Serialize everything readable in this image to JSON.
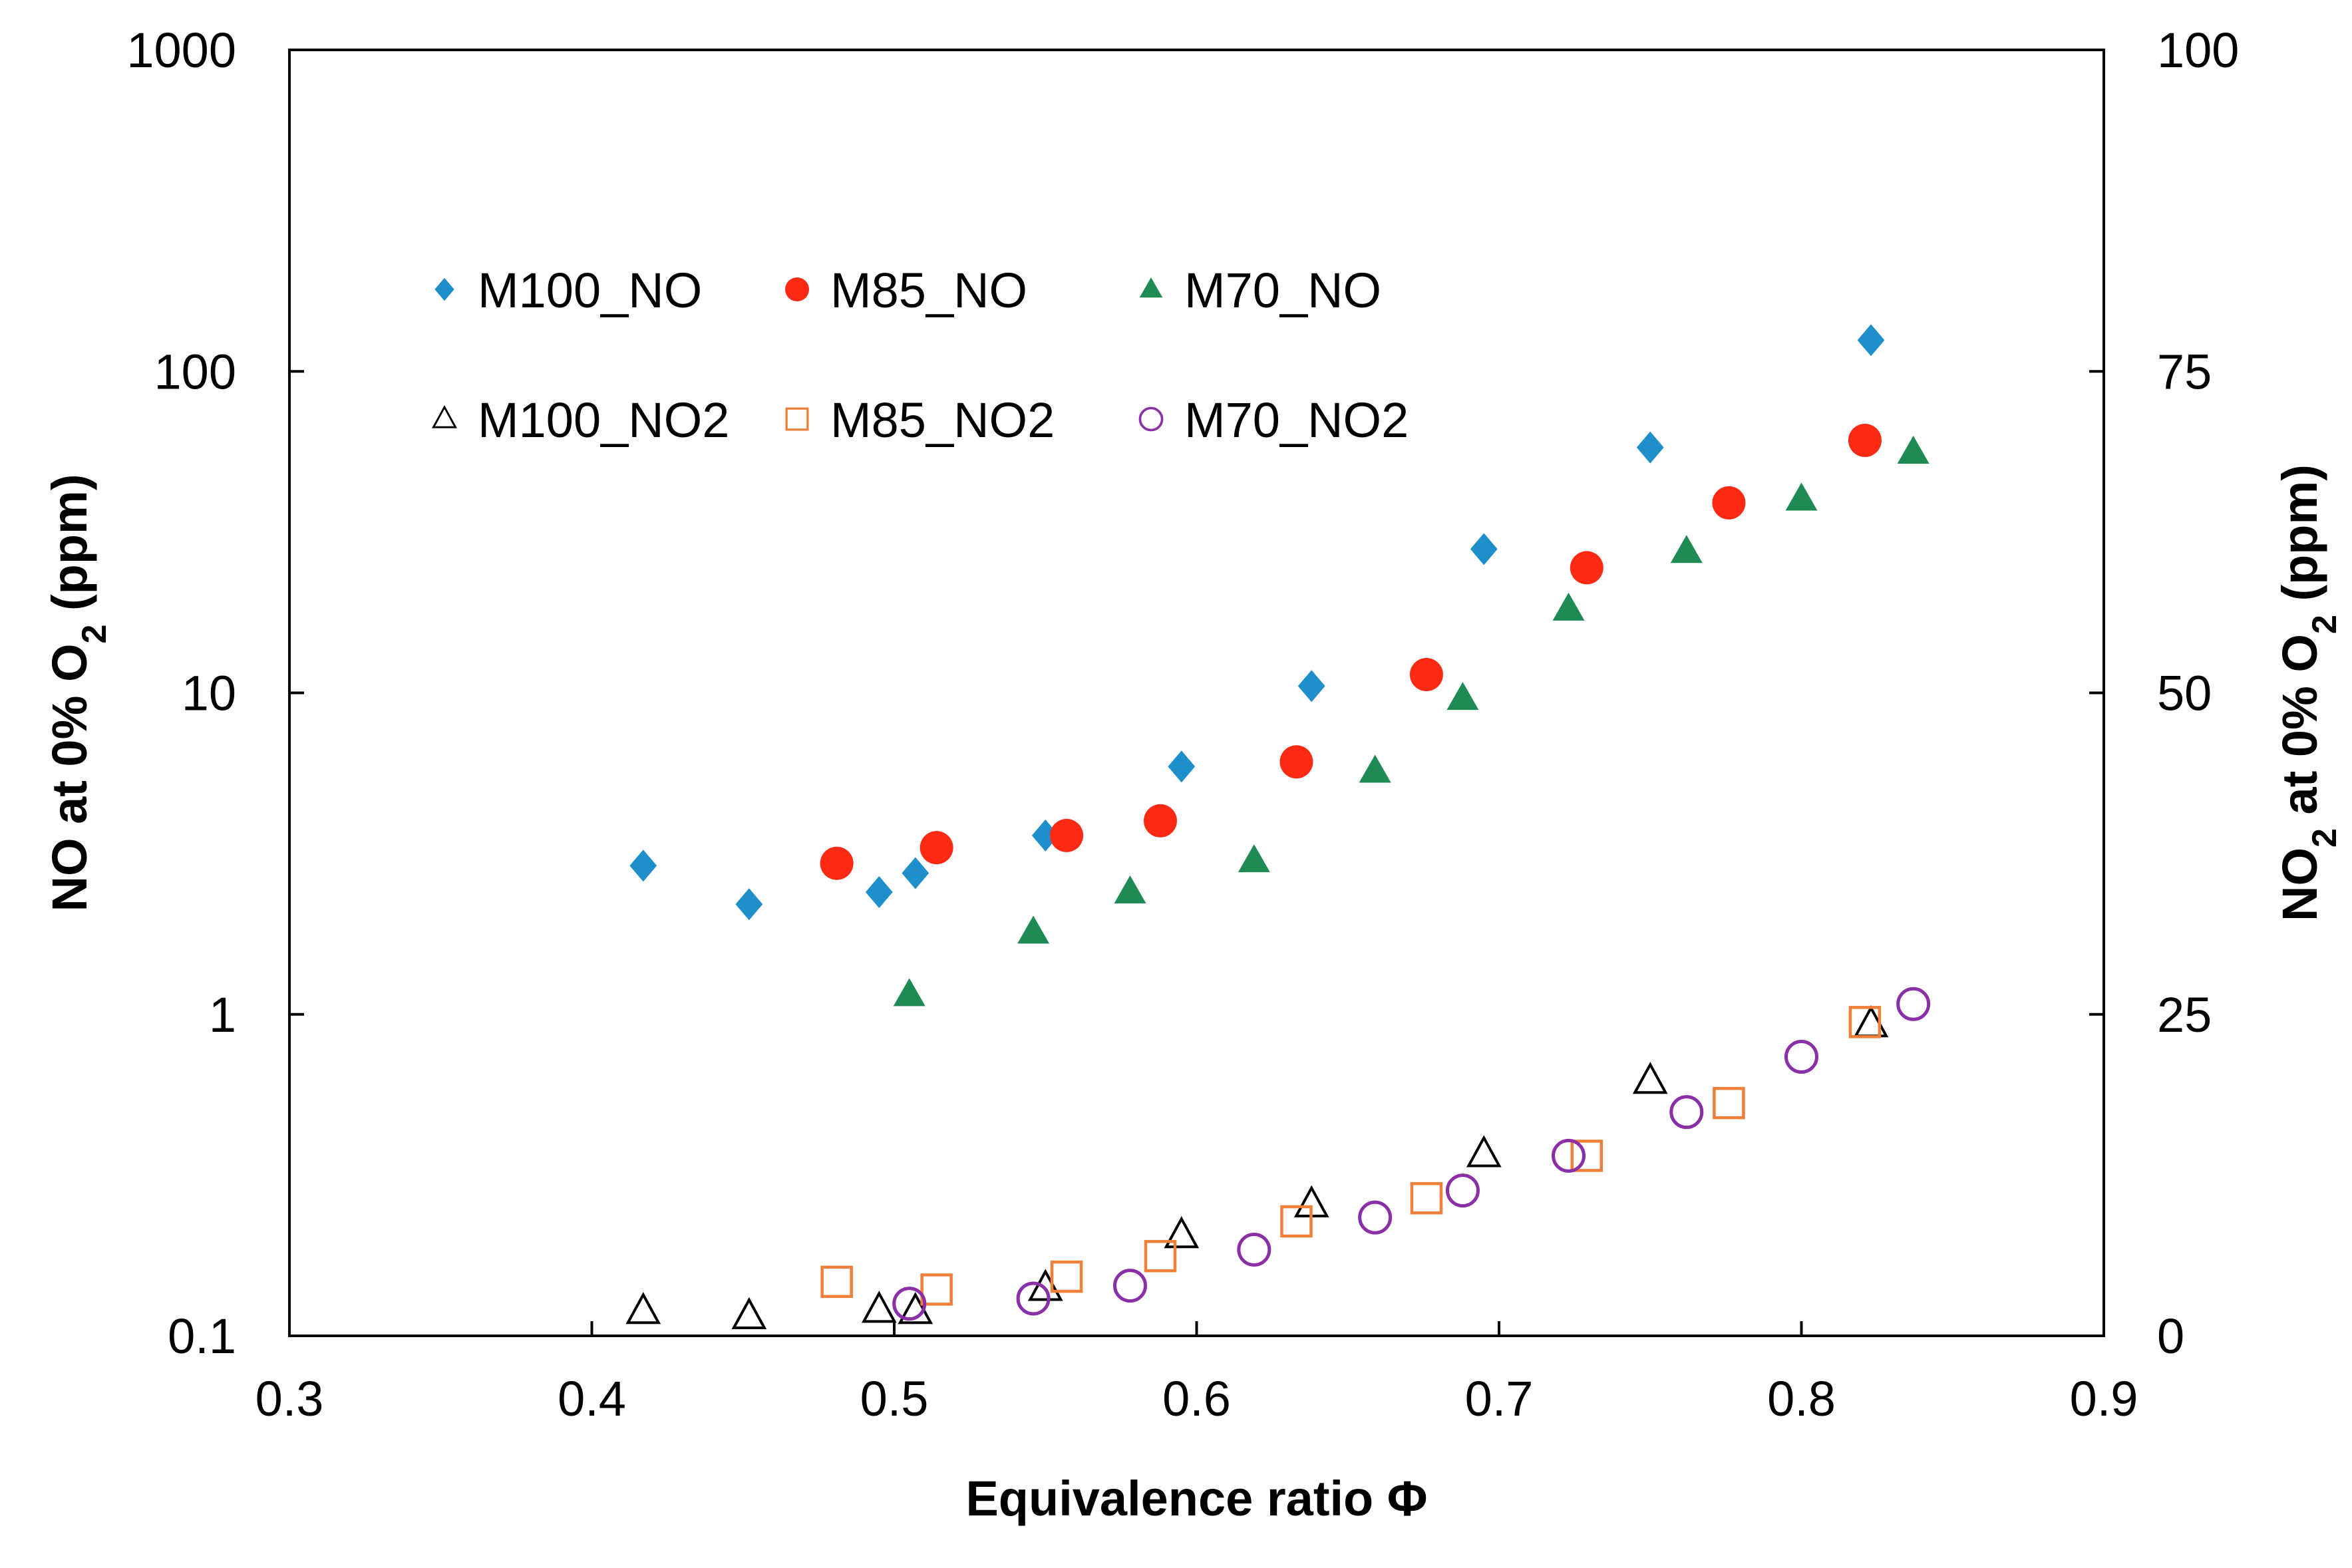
{
  "chart_data": {
    "type": "scatter",
    "xlabel": "Equivalence ratio Φ",
    "ylabel": {
      "prefix": "NO at 0% O",
      "sub": "2",
      "suffix": " (ppm)"
    },
    "y2label": {
      "prefix": "NO",
      "sub": "2",
      "suffix": " at 0% O",
      "sub2": "2",
      "suffix2": " (ppm)"
    },
    "xlim": [
      0.3,
      0.9
    ],
    "xticks": [
      0.3,
      0.4,
      0.5,
      0.6,
      0.7,
      0.8,
      0.9
    ],
    "xtick_labels": [
      "0.3",
      "0.4",
      "0.5",
      "0.6",
      "0.7",
      "0.8",
      "0.9"
    ],
    "ylim": [
      0.1,
      1000
    ],
    "yscale": "log",
    "yticks": [
      0.1,
      1,
      10,
      100,
      1000
    ],
    "ytick_labels": [
      "0.1",
      "1",
      "10",
      "100",
      "1000"
    ],
    "y2lim": [
      0,
      100
    ],
    "y2ticks": [
      0,
      25,
      50,
      75,
      100
    ],
    "y2tick_labels": [
      "0",
      "25",
      "50",
      "75",
      "100"
    ],
    "grid": false,
    "legend_position": "top-left",
    "series": [
      {
        "name": "M100_NO",
        "axis": "left",
        "marker": "diamond",
        "color": "#1f8fcb",
        "x": [
          0.417,
          0.452,
          0.495,
          0.507,
          0.55,
          0.595,
          0.638,
          0.695,
          0.75,
          0.823
        ],
        "y": [
          2.9,
          2.2,
          2.4,
          2.75,
          3.6,
          5.9,
          10.5,
          28,
          58,
          125
        ]
      },
      {
        "name": "M85_NO",
        "axis": "left",
        "marker": "circle-filled",
        "color": "#ff2a14",
        "x": [
          0.481,
          0.514,
          0.557,
          0.588,
          0.633,
          0.676,
          0.729,
          0.776,
          0.821
        ],
        "y": [
          2.95,
          3.3,
          3.6,
          4.0,
          6.1,
          11.4,
          24.5,
          39,
          61
        ]
      },
      {
        "name": "M70_NO",
        "axis": "left",
        "marker": "triangle-filled",
        "color": "#1e8a54",
        "x": [
          0.505,
          0.546,
          0.578,
          0.619,
          0.659,
          0.688,
          0.723,
          0.762,
          0.8,
          0.837
        ],
        "y": [
          1.15,
          1.8,
          2.4,
          3.0,
          5.7,
          9.6,
          18.2,
          27.5,
          40,
          56
        ]
      },
      {
        "name": "M100_NO2",
        "axis": "right",
        "marker": "triangle-open",
        "color": "#000000",
        "x": [
          0.417,
          0.452,
          0.495,
          0.507,
          0.55,
          0.595,
          0.638,
          0.695,
          0.75,
          0.823
        ],
        "y": [
          1.9,
          1.5,
          2.0,
          1.9,
          3.7,
          7.8,
          10.2,
          14.1,
          19.8,
          24.2
        ]
      },
      {
        "name": "M85_NO2",
        "axis": "right",
        "marker": "square-open",
        "color": "#f07f3a",
        "x": [
          0.481,
          0.514,
          0.557,
          0.588,
          0.633,
          0.676,
          0.729,
          0.776,
          0.821
        ],
        "y": [
          4.2,
          3.6,
          4.6,
          6.2,
          8.9,
          10.7,
          14.0,
          18.1,
          24.4
        ]
      },
      {
        "name": "M70_NO2",
        "axis": "right",
        "marker": "circle-open",
        "color": "#8b2fa6",
        "x": [
          0.505,
          0.546,
          0.578,
          0.619,
          0.659,
          0.688,
          0.723,
          0.762,
          0.8,
          0.837
        ],
        "y": [
          2.5,
          2.9,
          3.9,
          6.7,
          9.2,
          11.3,
          14.0,
          17.4,
          21.7,
          25.8
        ]
      }
    ]
  }
}
